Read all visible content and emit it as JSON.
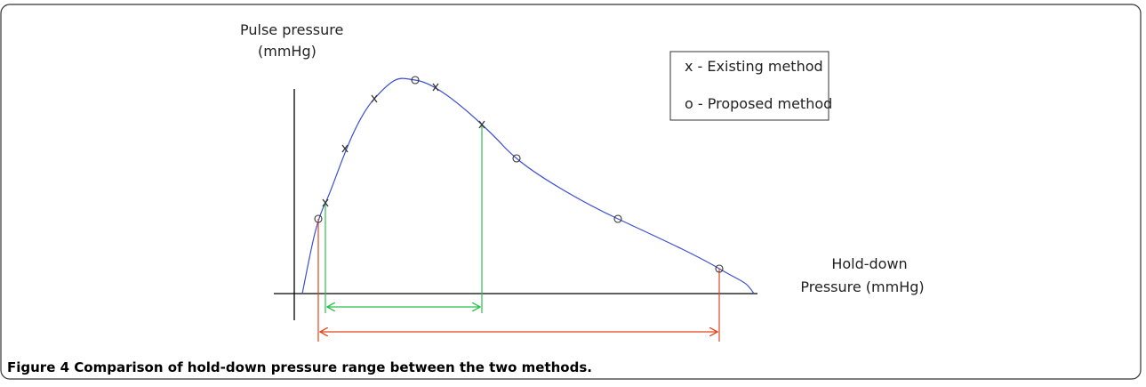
{
  "figure": {
    "y_axis_label": {
      "line1": "Pulse pressure",
      "line2": "(mmHg)"
    },
    "x_axis_label": {
      "line1": "Hold-down",
      "line2": "Pressure (mmHg)"
    },
    "legend": [
      "x - Existing method",
      "o - Proposed method"
    ],
    "caption": {
      "label": "Figure 4",
      "text": "Comparison of hold-down pressure range between the two methods."
    }
  }
}
